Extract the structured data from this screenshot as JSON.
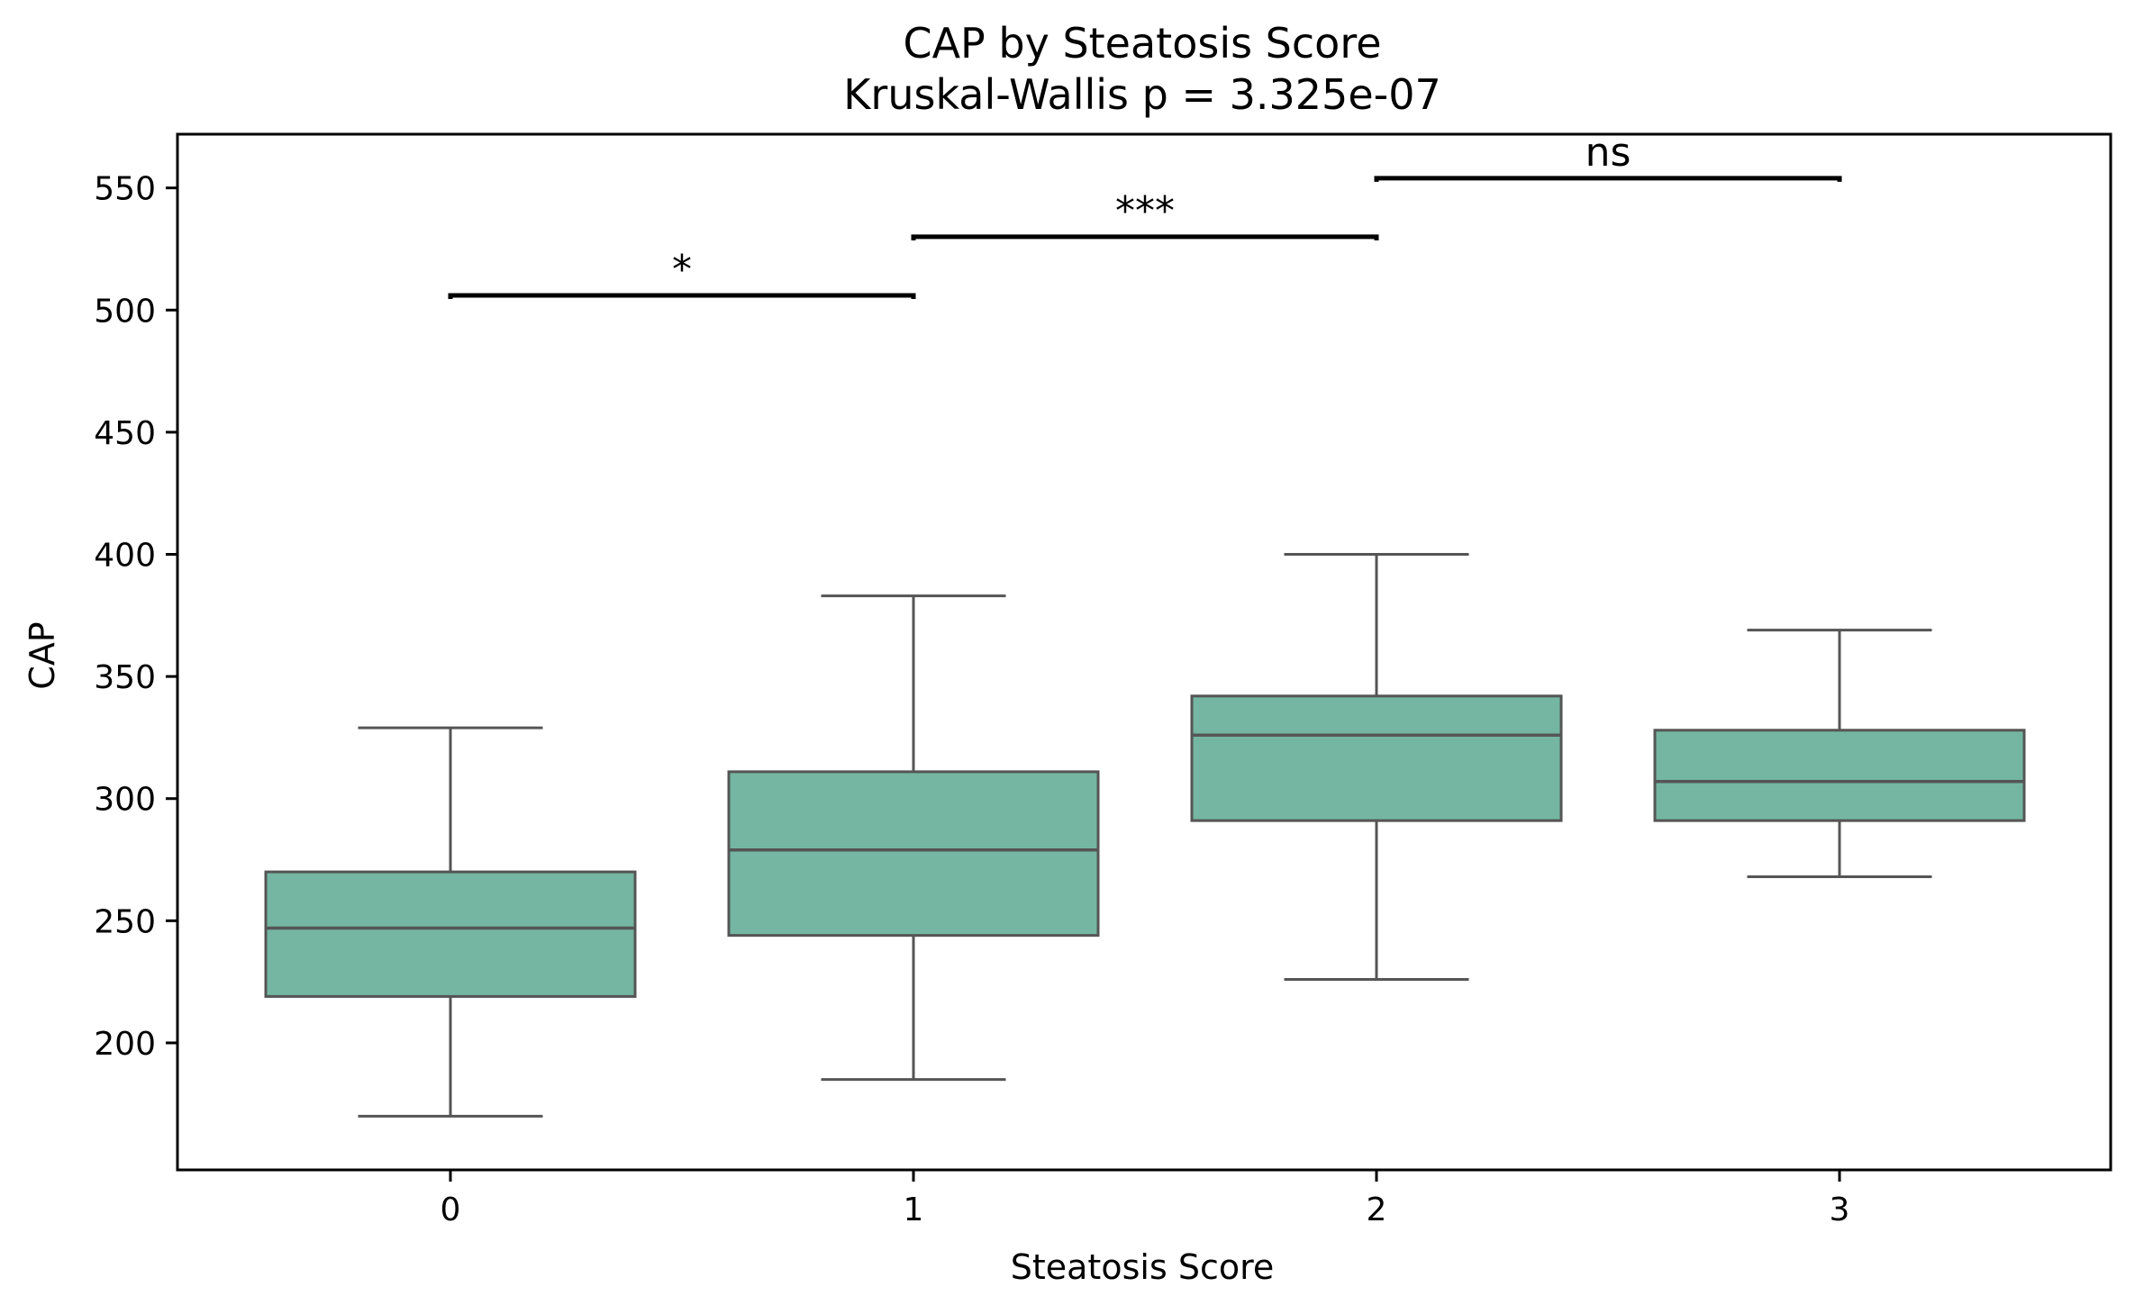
{
  "chart_data": {
    "type": "box",
    "title": "CAP by Steatosis Score",
    "subtitle": "Kruskal-Wallis p = 3.325e-07",
    "xlabel": "Steatosis Score",
    "ylabel": "CAP",
    "categories": [
      "0",
      "1",
      "2",
      "3"
    ],
    "yticks": [
      200,
      250,
      300,
      350,
      400,
      450,
      500,
      550
    ],
    "ylim": [
      148,
      572
    ],
    "grid": false,
    "box_color": "#74b6a1",
    "edge_color": "#555555",
    "boxes": [
      {
        "category": "0",
        "whisker_low": 170,
        "q1": 219,
        "median": 247,
        "q3": 270,
        "whisker_high": 329
      },
      {
        "category": "1",
        "whisker_low": 185,
        "q1": 244,
        "median": 279,
        "q3": 311,
        "whisker_high": 383
      },
      {
        "category": "2",
        "whisker_low": 226,
        "q1": 291,
        "median": 326,
        "q3": 342,
        "whisker_high": 400
      },
      {
        "category": "3",
        "whisker_low": 268,
        "q1": 291,
        "median": 307,
        "q3": 328,
        "whisker_high": 369
      }
    ],
    "comparisons": [
      {
        "from": "0",
        "to": "1",
        "y": 506,
        "label": "*"
      },
      {
        "from": "1",
        "to": "2",
        "y": 530,
        "label": "***"
      },
      {
        "from": "2",
        "to": "3",
        "y": 554,
        "label": "ns"
      }
    ]
  }
}
